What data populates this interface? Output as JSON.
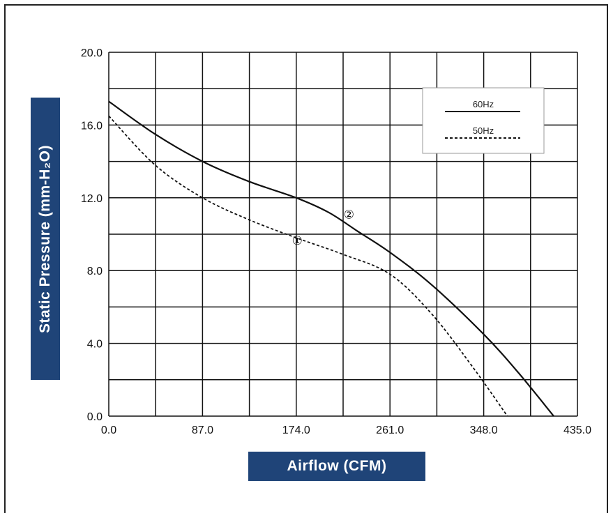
{
  "chart_data": {
    "type": "line",
    "xlabel": "Airflow (CFM)",
    "ylabel": "Static Pressure (mm-H₂O)",
    "xlim": [
      0,
      435
    ],
    "ylim": [
      0,
      20
    ],
    "x_ticks": [
      "0.0",
      "87.0",
      "174.0",
      "261.0",
      "348.0",
      "435.0"
    ],
    "y_ticks": [
      "0.0",
      "4.0",
      "8.0",
      "12.0",
      "16.0",
      "20.0"
    ],
    "grid": true,
    "legend_position": "top-right",
    "series": [
      {
        "name": "60Hz",
        "style": "solid",
        "curve_label": "②",
        "x": [
          0,
          43,
          87,
          130,
          174,
          204,
          230,
          261,
          300,
          348,
          380,
          413
        ],
        "y": [
          17.3,
          15.5,
          14.0,
          12.9,
          12.0,
          11.2,
          10.2,
          9.0,
          7.2,
          4.5,
          2.4,
          0.0
        ]
      },
      {
        "name": "50Hz",
        "style": "dashed",
        "curve_label": "①",
        "x": [
          0,
          43,
          87,
          130,
          174,
          217,
          261,
          300,
          339,
          370
        ],
        "y": [
          16.5,
          13.8,
          12.0,
          10.8,
          9.8,
          8.9,
          7.8,
          5.6,
          2.6,
          0.0
        ]
      }
    ]
  }
}
